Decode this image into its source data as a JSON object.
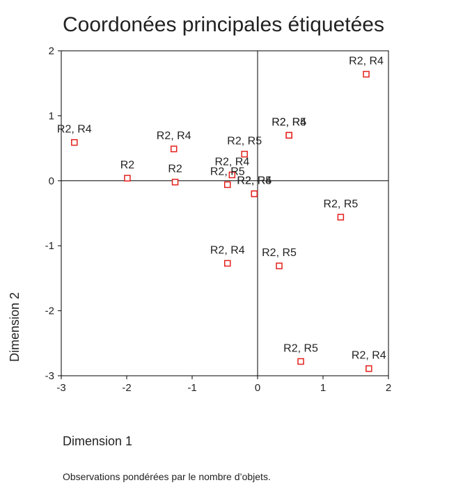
{
  "chart_data": {
    "type": "scatter",
    "title": "Coordonées principales étiquetées",
    "xlabel": "Dimension 1",
    "ylabel": "Dimension 2",
    "note": "Observations pondérées par le nombre d’objets.",
    "x": [
      -2.8,
      -1.99,
      -1.26,
      -1.28,
      -0.2,
      -0.39,
      -0.46,
      -0.05,
      -0.05,
      0.48,
      0.48,
      1.66,
      1.27,
      -0.46,
      0.33,
      0.66,
      1.7
    ],
    "y": [
      0.59,
      0.04,
      -0.02,
      0.49,
      0.41,
      0.09,
      -0.06,
      -0.2,
      -0.2,
      0.7,
      0.7,
      1.64,
      -0.56,
      -1.27,
      -1.31,
      -2.78,
      -2.89
    ],
    "point_labels": [
      "R2, R4",
      "R2",
      "R2",
      "R2, R4",
      "R2, R5",
      "R2, R4",
      "R2, R5",
      "R2, R4",
      "R2, R5",
      "R2, R4",
      "R2, R5",
      "R2, R4",
      "R2, R5",
      "R2, R4",
      "R2, R5",
      "R2, R5",
      "R2, R4"
    ],
    "color": "#e3201b",
    "xlim": [
      -3,
      2
    ],
    "xticks": [
      -3,
      -2,
      -1,
      0,
      1,
      2
    ],
    "ylim": [
      -3,
      2
    ],
    "yticks": [
      -3,
      -2,
      -1,
      0,
      1,
      2
    ]
  }
}
